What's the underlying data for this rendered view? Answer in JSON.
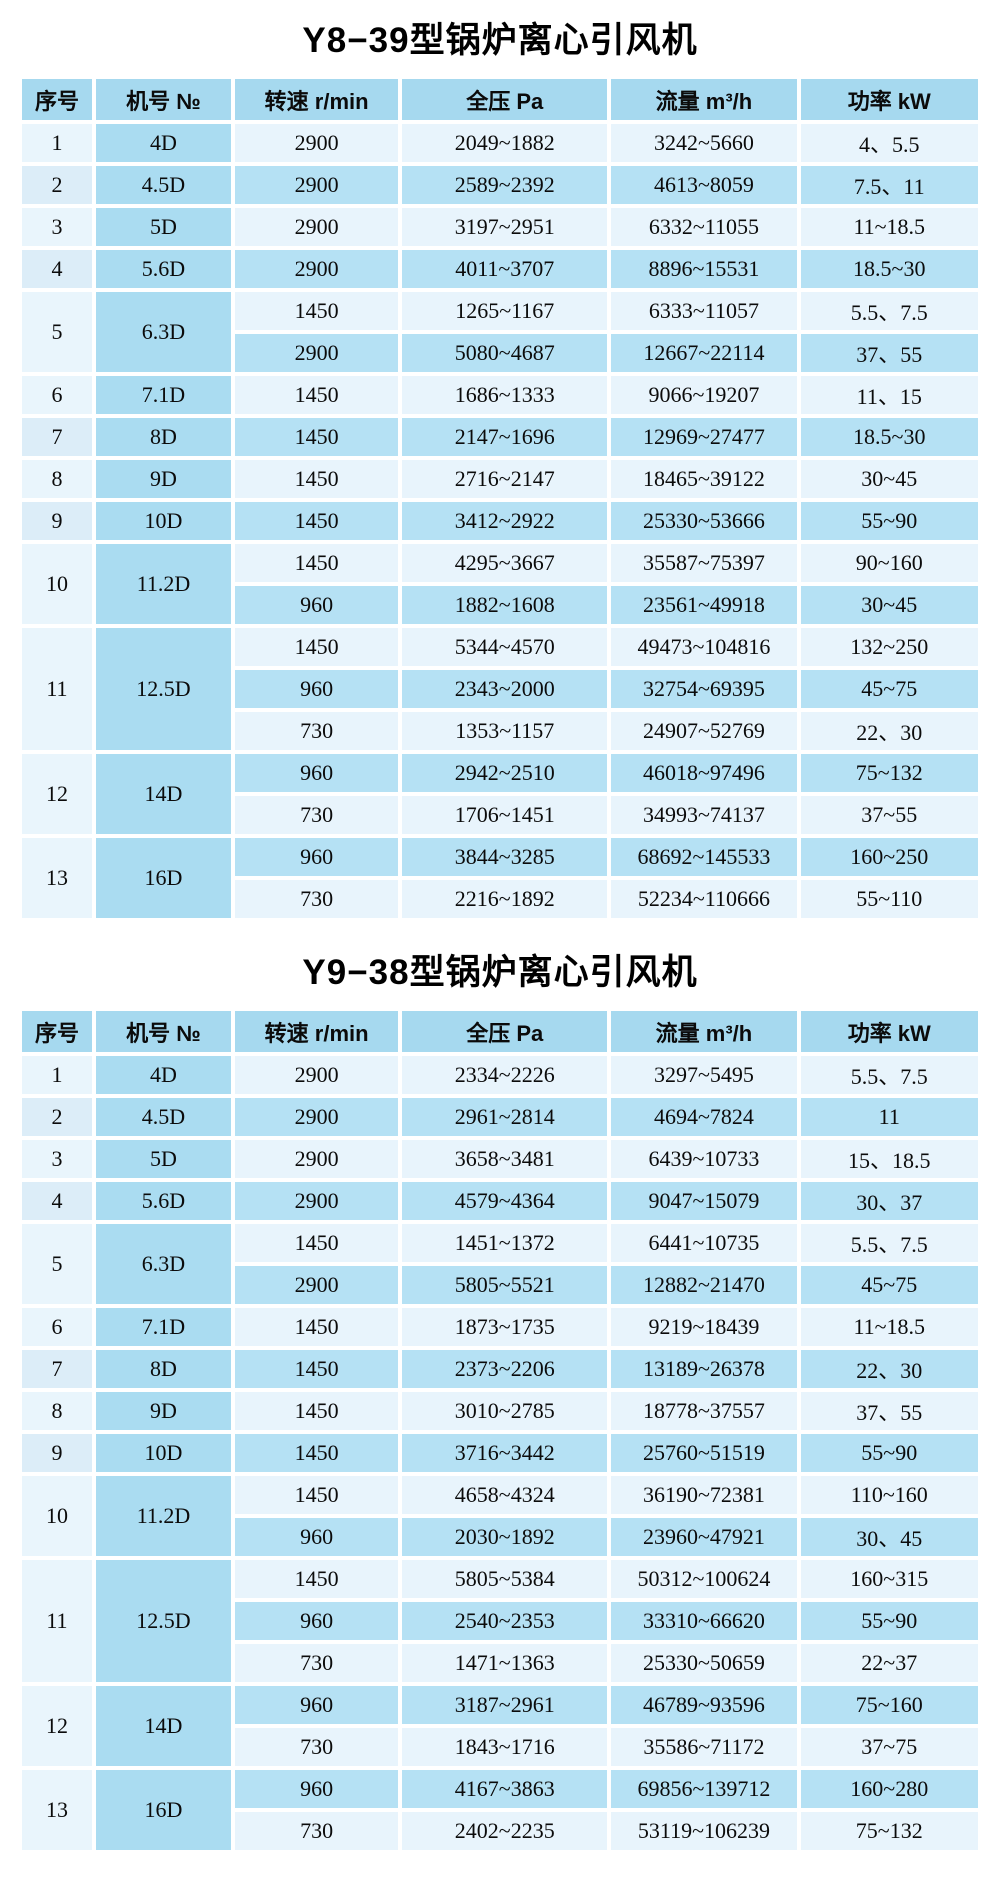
{
  "colors": {
    "header_bg": "#a6d9ef",
    "model_col_bg": "#aadcf1",
    "row_light_bg": "#e8f4fc",
    "row_dark_bg": "#b5e1f4",
    "serial_col_bg": "#e9f5fc",
    "grid_line": "#ffffff",
    "text": "#0b0b0b"
  },
  "tables": [
    {
      "title": "Y8−39型锅炉离心引风机",
      "headers": [
        "序号",
        "机号 №",
        "转速 r/min",
        "全压 Pa",
        "流量 m³/h",
        "功率 kW"
      ],
      "groups": [
        {
          "no": "1",
          "model": "4D",
          "rows": [
            [
              "2900",
              "2049~1882",
              "3242~5660",
              "4、5.5"
            ]
          ]
        },
        {
          "no": "2",
          "model": "4.5D",
          "rows": [
            [
              "2900",
              "2589~2392",
              "4613~8059",
              "7.5、11"
            ]
          ]
        },
        {
          "no": "3",
          "model": "5D",
          "rows": [
            [
              "2900",
              "3197~2951",
              "6332~11055",
              "11~18.5"
            ]
          ]
        },
        {
          "no": "4",
          "model": "5.6D",
          "rows": [
            [
              "2900",
              "4011~3707",
              "8896~15531",
              "18.5~30"
            ]
          ]
        },
        {
          "no": "5",
          "model": "6.3D",
          "rows": [
            [
              "1450",
              "1265~1167",
              "6333~11057",
              "5.5、7.5"
            ],
            [
              "2900",
              "5080~4687",
              "12667~22114",
              "37、55"
            ]
          ]
        },
        {
          "no": "6",
          "model": "7.1D",
          "rows": [
            [
              "1450",
              "1686~1333",
              "9066~19207",
              "11、15"
            ]
          ]
        },
        {
          "no": "7",
          "model": "8D",
          "rows": [
            [
              "1450",
              "2147~1696",
              "12969~27477",
              "18.5~30"
            ]
          ]
        },
        {
          "no": "8",
          "model": "9D",
          "rows": [
            [
              "1450",
              "2716~2147",
              "18465~39122",
              "30~45"
            ]
          ]
        },
        {
          "no": "9",
          "model": "10D",
          "rows": [
            [
              "1450",
              "3412~2922",
              "25330~53666",
              "55~90"
            ]
          ]
        },
        {
          "no": "10",
          "model": "11.2D",
          "rows": [
            [
              "1450",
              "4295~3667",
              "35587~75397",
              "90~160"
            ],
            [
              "960",
              "1882~1608",
              "23561~49918",
              "30~45"
            ]
          ]
        },
        {
          "no": "11",
          "model": "12.5D",
          "rows": [
            [
              "1450",
              "5344~4570",
              "49473~104816",
              "132~250"
            ],
            [
              "960",
              "2343~2000",
              "32754~69395",
              "45~75"
            ],
            [
              "730",
              "1353~1157",
              "24907~52769",
              "22、30"
            ]
          ]
        },
        {
          "no": "12",
          "model": "14D",
          "rows": [
            [
              "960",
              "2942~2510",
              "46018~97496",
              "75~132"
            ],
            [
              "730",
              "1706~1451",
              "34993~74137",
              "37~55"
            ]
          ]
        },
        {
          "no": "13",
          "model": "16D",
          "rows": [
            [
              "960",
              "3844~3285",
              "68692~145533",
              "160~250"
            ],
            [
              "730",
              "2216~1892",
              "52234~110666",
              "55~110"
            ]
          ]
        }
      ]
    },
    {
      "title": "Y9−38型锅炉离心引风机",
      "headers": [
        "序号",
        "机号 №",
        "转速 r/min",
        "全压 Pa",
        "流量 m³/h",
        "功率 kW"
      ],
      "groups": [
        {
          "no": "1",
          "model": "4D",
          "rows": [
            [
              "2900",
              "2334~2226",
              "3297~5495",
              "5.5、7.5"
            ]
          ]
        },
        {
          "no": "2",
          "model": "4.5D",
          "rows": [
            [
              "2900",
              "2961~2814",
              "4694~7824",
              "11"
            ]
          ]
        },
        {
          "no": "3",
          "model": "5D",
          "rows": [
            [
              "2900",
              "3658~3481",
              "6439~10733",
              "15、18.5"
            ]
          ]
        },
        {
          "no": "4",
          "model": "5.6D",
          "rows": [
            [
              "2900",
              "4579~4364",
              "9047~15079",
              "30、37"
            ]
          ]
        },
        {
          "no": "5",
          "model": "6.3D",
          "rows": [
            [
              "1450",
              "1451~1372",
              "6441~10735",
              "5.5、7.5"
            ],
            [
              "2900",
              "5805~5521",
              "12882~21470",
              "45~75"
            ]
          ]
        },
        {
          "no": "6",
          "model": "7.1D",
          "rows": [
            [
              "1450",
              "1873~1735",
              "9219~18439",
              "11~18.5"
            ]
          ]
        },
        {
          "no": "7",
          "model": "8D",
          "rows": [
            [
              "1450",
              "2373~2206",
              "13189~26378",
              "22、30"
            ]
          ]
        },
        {
          "no": "8",
          "model": "9D",
          "rows": [
            [
              "1450",
              "3010~2785",
              "18778~37557",
              "37、55"
            ]
          ]
        },
        {
          "no": "9",
          "model": "10D",
          "rows": [
            [
              "1450",
              "3716~3442",
              "25760~51519",
              "55~90"
            ]
          ]
        },
        {
          "no": "10",
          "model": "11.2D",
          "rows": [
            [
              "1450",
              "4658~4324",
              "36190~72381",
              "110~160"
            ],
            [
              "960",
              "2030~1892",
              "23960~47921",
              "30、45"
            ]
          ]
        },
        {
          "no": "11",
          "model": "12.5D",
          "rows": [
            [
              "1450",
              "5805~5384",
              "50312~100624",
              "160~315"
            ],
            [
              "960",
              "2540~2353",
              "33310~66620",
              "55~90"
            ],
            [
              "730",
              "1471~1363",
              "25330~50659",
              "22~37"
            ]
          ]
        },
        {
          "no": "12",
          "model": "14D",
          "rows": [
            [
              "960",
              "3187~2961",
              "46789~93596",
              "75~160"
            ],
            [
              "730",
              "1843~1716",
              "35586~71172",
              "37~75"
            ]
          ]
        },
        {
          "no": "13",
          "model": "16D",
          "rows": [
            [
              "960",
              "4167~3863",
              "69856~139712",
              "160~280"
            ],
            [
              "730",
              "2402~2235",
              "53119~106239",
              "75~132"
            ]
          ]
        }
      ]
    }
  ]
}
